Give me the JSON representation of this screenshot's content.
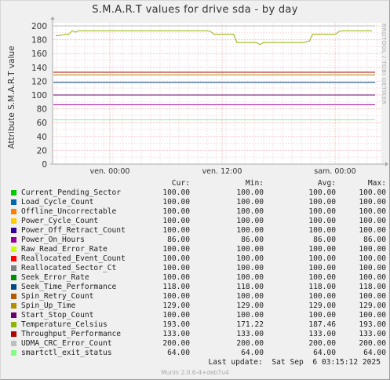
{
  "page": {
    "title": "S.M.A.R.T values for drive sda - by day",
    "side_label": "RRDTOOL / TOBI OETIKER",
    "footer_update": "Last update:  Sat Sep  6 03:15:12 2025",
    "footer_version": "Munin 2.0.6-4+deb7u4"
  },
  "chart_data": {
    "type": "line",
    "ylabel": "Attribute S.M.A.R.T value",
    "ylim": [
      0,
      200
    ],
    "yticks": [
      "0",
      "20",
      "40",
      "60",
      "80",
      "100",
      "120",
      "140",
      "160",
      "180",
      "200"
    ],
    "xticks": [
      "ven. 00:00",
      "ven. 12:00",
      "sam. 00:00"
    ],
    "grid": true,
    "legend_headers": {
      "cur": "Cur:",
      "min": "Min:",
      "avg": "Avg:",
      "max": "Max:"
    },
    "series": [
      {
        "name": "Current_Pending_Sector",
        "color": "#00cc00",
        "cur": "100.00",
        "min": "100.00",
        "avg": "100.00",
        "max": "100.00",
        "value": 100
      },
      {
        "name": "Load_Cycle_Count",
        "color": "#0066b3",
        "cur": "100.00",
        "min": "100.00",
        "avg": "100.00",
        "max": "100.00",
        "value": 100
      },
      {
        "name": "Offline_Uncorrectable",
        "color": "#ff8000",
        "cur": "100.00",
        "min": "100.00",
        "avg": "100.00",
        "max": "100.00",
        "value": 100
      },
      {
        "name": "Power_Cycle_Count",
        "color": "#ffcc00",
        "cur": "100.00",
        "min": "100.00",
        "avg": "100.00",
        "max": "100.00",
        "value": 100
      },
      {
        "name": "Power_Off_Retract_Count",
        "color": "#330099",
        "cur": "100.00",
        "min": "100.00",
        "avg": "100.00",
        "max": "100.00",
        "value": 100
      },
      {
        "name": "Power_On_Hours",
        "color": "#990099",
        "cur": "86.00",
        "min": "86.00",
        "avg": "86.00",
        "max": "86.00",
        "value": 86
      },
      {
        "name": "Raw_Read_Error_Rate",
        "color": "#ccff00",
        "cur": "100.00",
        "min": "100.00",
        "avg": "100.00",
        "max": "100.00",
        "value": 100
      },
      {
        "name": "Reallocated_Event_Count",
        "color": "#ff0000",
        "cur": "100.00",
        "min": "100.00",
        "avg": "100.00",
        "max": "100.00",
        "value": 100
      },
      {
        "name": "Reallocated_Sector_Ct",
        "color": "#808080",
        "cur": "100.00",
        "min": "100.00",
        "avg": "100.00",
        "max": "100.00",
        "value": 100
      },
      {
        "name": "Seek_Error_Rate",
        "color": "#008f00",
        "cur": "100.00",
        "min": "100.00",
        "avg": "100.00",
        "max": "100.00",
        "value": 100
      },
      {
        "name": "Seek_Time_Performance",
        "color": "#00487d",
        "cur": "118.00",
        "min": "118.00",
        "avg": "118.00",
        "max": "118.00",
        "value": 118
      },
      {
        "name": "Spin_Retry_Count",
        "color": "#b35a00",
        "cur": "100.00",
        "min": "100.00",
        "avg": "100.00",
        "max": "100.00",
        "value": 100
      },
      {
        "name": "Spin_Up_Time",
        "color": "#b38f00",
        "cur": "129.00",
        "min": "129.00",
        "avg": "129.00",
        "max": "129.00",
        "value": 129
      },
      {
        "name": "Start_Stop_Count",
        "color": "#6b006b",
        "cur": "100.00",
        "min": "100.00",
        "avg": "100.00",
        "max": "100.00",
        "value": 100
      },
      {
        "name": "Temperature_Celsius",
        "color": "#8fb300",
        "cur": "193.00",
        "min": "171.22",
        "avg": "187.46",
        "max": "193.00",
        "values": [
          186,
          186,
          187,
          188,
          188,
          193,
          191,
          193,
          193,
          193,
          193,
          193,
          193,
          193,
          193,
          193,
          193,
          193,
          193,
          193,
          193,
          193,
          193,
          193,
          193,
          193,
          193,
          193,
          193,
          193,
          193,
          193,
          193,
          193,
          193,
          193,
          193,
          193,
          193,
          193,
          193,
          193,
          193,
          193,
          193,
          193,
          193,
          192,
          188,
          188,
          188,
          188,
          188,
          188,
          188,
          176,
          176,
          176,
          176,
          176,
          176,
          176,
          173,
          176,
          176,
          176,
          176,
          176,
          176,
          176,
          176,
          176,
          176,
          176,
          176,
          176,
          177,
          178,
          188,
          188,
          188,
          188,
          188,
          188,
          188,
          188,
          192,
          193,
          193,
          193,
          193,
          193,
          193,
          193,
          193,
          193,
          193
        ]
      },
      {
        "name": "Throughput_Performance",
        "color": "#b30000",
        "cur": "133.00",
        "min": "133.00",
        "avg": "133.00",
        "max": "133.00",
        "value": 133
      },
      {
        "name": "UDMA_CRC_Error_Count",
        "color": "#bebebe",
        "cur": "200.00",
        "min": "200.00",
        "avg": "200.00",
        "max": "200.00",
        "value": 200
      },
      {
        "name": "smartctl_exit_status",
        "color": "#80ff80",
        "cur": "64.00",
        "min": "64.00",
        "avg": "64.00",
        "max": "64.00",
        "value": 64
      }
    ]
  }
}
